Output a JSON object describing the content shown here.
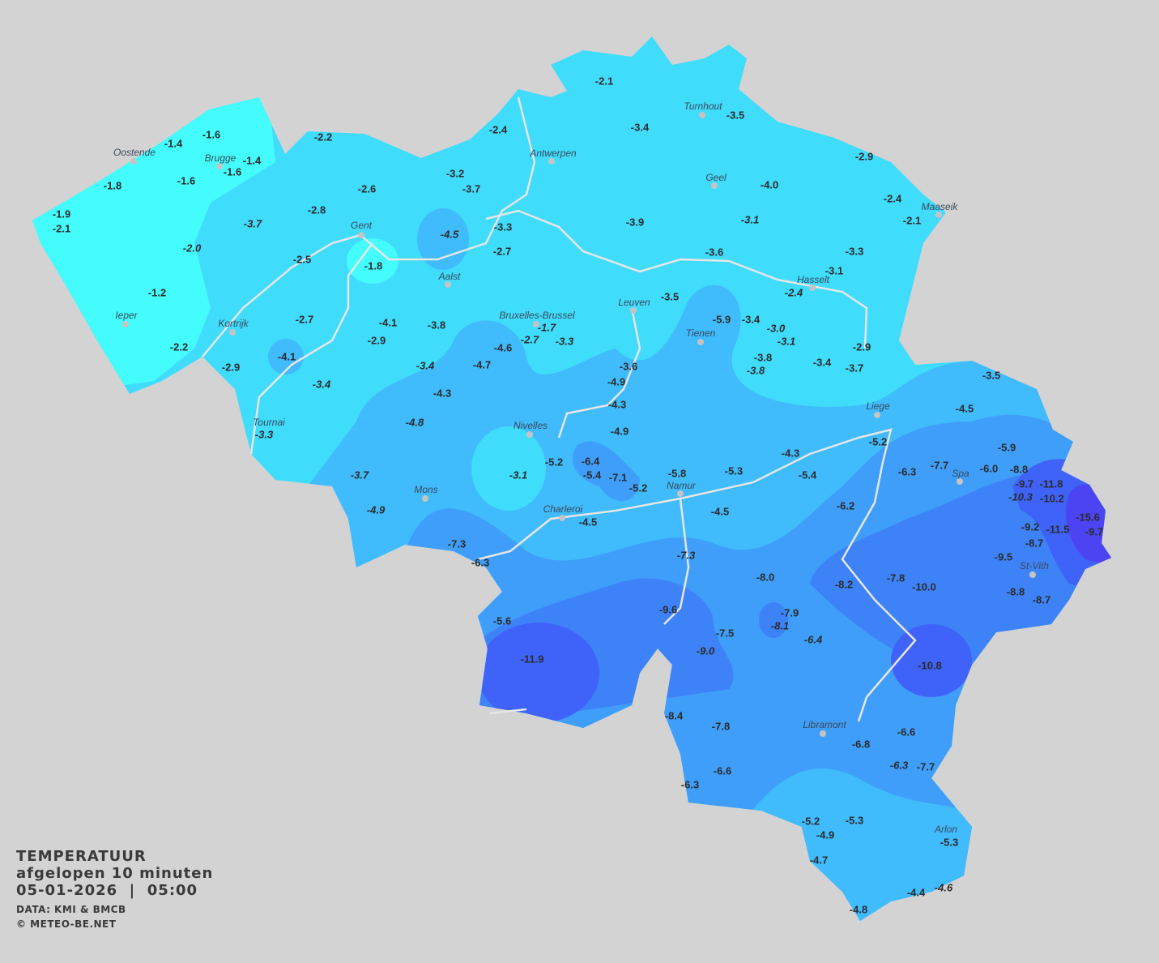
{
  "legend": {
    "title": "TEMPERATUUR",
    "period": "afgelopen 10 minuten",
    "datetime": "05-01-2026  |  05:00",
    "source": "DATA: KMI & BMCB",
    "copyright": "© METEO-BE.NET"
  },
  "colors": {
    "background": "#d3d3d3",
    "band_above_-2": "#44fcfc",
    "band_-2_-4": "#40dcfc",
    "band_-4_-6": "#40bbfc",
    "band_-6_-8": "#3f9ef9",
    "band_-8_-10": "#3e82f8",
    "band_-10_-12": "#3f62f8",
    "band_below_-12": "#4c44f2",
    "rivers": "#e8e8e8"
  },
  "cities": [
    "Turnhout",
    "Oostende",
    "Brugge",
    "Antwerpen",
    "Geel",
    "Maaseik",
    "Gent",
    "Aalst",
    "Hasselt",
    "Leuven",
    "Ieper",
    "Bruxelles-Brussel",
    "Kortrijk",
    "Tienen",
    "Liege",
    "Nivelles",
    "Tournai",
    "Namur",
    "Spa",
    "Mons",
    "Charleroi",
    "St-Vith",
    "Libramont",
    "Arlon"
  ],
  "readings": [
    {
      "v": "-2.1"
    },
    {
      "v": "-3.4"
    },
    {
      "v": "-3.5"
    },
    {
      "v": "-2.4"
    },
    {
      "v": "-2.2"
    },
    {
      "v": "-1.6"
    },
    {
      "v": "-1.4"
    },
    {
      "v": "-1.4"
    },
    {
      "v": "-1.6"
    },
    {
      "v": "-2.9"
    },
    {
      "v": "-1.8"
    },
    {
      "v": "-1.6"
    },
    {
      "v": "-3.2"
    },
    {
      "v": "-3.7"
    },
    {
      "v": "-2.6"
    },
    {
      "v": "-4.0"
    },
    {
      "v": "-2.4"
    },
    {
      "v": "-2.1"
    },
    {
      "v": "-1.9"
    },
    {
      "v": "-2.1"
    },
    {
      "v": "-3.7",
      "italic": true
    },
    {
      "v": "-2.8"
    },
    {
      "v": "-4.5",
      "italic": true
    },
    {
      "v": "-3.3"
    },
    {
      "v": "-2.7"
    },
    {
      "v": "-3.9"
    },
    {
      "v": "-3.1",
      "italic": true
    },
    {
      "v": "-2.0",
      "italic": true
    },
    {
      "v": "-2.5"
    },
    {
      "v": "-1.8"
    },
    {
      "v": "-3.6"
    },
    {
      "v": "-3.3"
    },
    {
      "v": "-3.1"
    },
    {
      "v": "-2.4",
      "italic": true
    },
    {
      "v": "-1.2"
    },
    {
      "v": "-3.5"
    },
    {
      "v": "-1.7",
      "italic": true
    },
    {
      "v": "-2.7",
      "italic": true
    },
    {
      "v": "-3.3",
      "italic": true
    },
    {
      "v": "-2.7"
    },
    {
      "v": "-4.1"
    },
    {
      "v": "-3.8"
    },
    {
      "v": "-2.9"
    },
    {
      "v": "-5.9"
    },
    {
      "v": "-3.4"
    },
    {
      "v": "-3.0",
      "italic": true
    },
    {
      "v": "-3.1",
      "italic": true
    },
    {
      "v": "-2.2"
    },
    {
      "v": "-4.1"
    },
    {
      "v": "-4.6"
    },
    {
      "v": "-4.7"
    },
    {
      "v": "-3.4",
      "italic": true
    },
    {
      "v": "-3.6"
    },
    {
      "v": "-3.8"
    },
    {
      "v": "-3.8",
      "italic": true
    },
    {
      "v": "-3.4"
    },
    {
      "v": "-2.9"
    },
    {
      "v": "-3.7"
    },
    {
      "v": "-2.9"
    },
    {
      "v": "-3.4",
      "italic": true
    },
    {
      "v": "-4.3"
    },
    {
      "v": "-4.9"
    },
    {
      "v": "-4.3"
    },
    {
      "v": "-3.5"
    },
    {
      "v": "-4.5"
    },
    {
      "v": "-4.8",
      "italic": true
    },
    {
      "v": "-4.9"
    },
    {
      "v": "-3.3",
      "italic": true
    },
    {
      "v": "-5.2"
    },
    {
      "v": "-5.9"
    },
    {
      "v": "-5.2"
    },
    {
      "v": "-6.4"
    },
    {
      "v": "-5.4"
    },
    {
      "v": "-7.1"
    },
    {
      "v": "-5.2"
    },
    {
      "v": "-3.1",
      "italic": true
    },
    {
      "v": "-3.7",
      "italic": true
    },
    {
      "v": "-5.8"
    },
    {
      "v": "-5.3"
    },
    {
      "v": "-4.3"
    },
    {
      "v": "-5.4"
    },
    {
      "v": "-6.3"
    },
    {
      "v": "-7.7"
    },
    {
      "v": "-6.0"
    },
    {
      "v": "-8.8"
    },
    {
      "v": "-9.7"
    },
    {
      "v": "-11.8"
    },
    {
      "v": "-10.3",
      "italic": true
    },
    {
      "v": "-10.2"
    },
    {
      "v": "-4.9",
      "italic": true
    },
    {
      "v": "-4.5"
    },
    {
      "v": "-4.5"
    },
    {
      "v": "-6.2"
    },
    {
      "v": "-9.2"
    },
    {
      "v": "-15.6"
    },
    {
      "v": "-11.5"
    },
    {
      "v": "-9.7"
    },
    {
      "v": "-8.7"
    },
    {
      "v": "-7.3"
    },
    {
      "v": "-6.3"
    },
    {
      "v": "-7.3",
      "italic": true
    },
    {
      "v": "-9.5"
    },
    {
      "v": "-8.0"
    },
    {
      "v": "-8.2"
    },
    {
      "v": "-7.8"
    },
    {
      "v": "-10.0"
    },
    {
      "v": "-8.8"
    },
    {
      "v": "-8.7"
    },
    {
      "v": "-9.6"
    },
    {
      "v": "-7.9"
    },
    {
      "v": "-8.1",
      "italic": true
    },
    {
      "v": "-5.6"
    },
    {
      "v": "-7.5"
    },
    {
      "v": "-6.4",
      "italic": true
    },
    {
      "v": "-9.0",
      "italic": true
    },
    {
      "v": "-11.9"
    },
    {
      "v": "-10.8"
    },
    {
      "v": "-8.4"
    },
    {
      "v": "-7.8"
    },
    {
      "v": "-6.8"
    },
    {
      "v": "-6.6"
    },
    {
      "v": "-6.6"
    },
    {
      "v": "-6.3",
      "italic": true
    },
    {
      "v": "-7.7"
    },
    {
      "v": "-6.3"
    },
    {
      "v": "-5.2"
    },
    {
      "v": "-5.3"
    },
    {
      "v": "-4.9"
    },
    {
      "v": "-5.3"
    },
    {
      "v": "-4.7"
    },
    {
      "v": "-4.4"
    },
    {
      "v": "-4.6",
      "italic": true
    },
    {
      "v": "-4.8"
    }
  ]
}
